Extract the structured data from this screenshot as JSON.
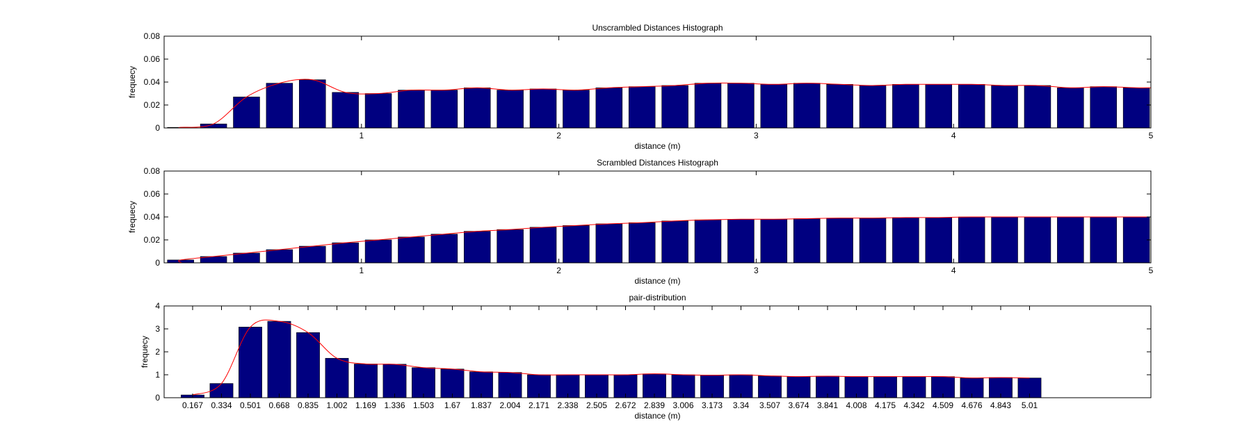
{
  "chart_data": [
    {
      "type": "bar",
      "title": "Unscrambled Distances Histograph",
      "xlabel": "distance (m)",
      "ylabel": "frequecy",
      "xlim": [
        0,
        5
      ],
      "ylim": [
        0,
        0.08
      ],
      "xticks": [
        1,
        2,
        3,
        4,
        5
      ],
      "xtick_labels": [
        "1",
        "2",
        "3",
        "4",
        "5"
      ],
      "yticks": [
        0,
        0.02,
        0.04,
        0.06,
        0.08
      ],
      "ytick_labels": [
        "0",
        "0.02",
        "0.04",
        "0.06",
        "0.08"
      ],
      "grid": false,
      "bar_color": "#000080",
      "curve_color": "#ff0000",
      "x": [
        0.167,
        0.334,
        0.501,
        0.668,
        0.835,
        1.002,
        1.169,
        1.336,
        1.503,
        1.67,
        1.837,
        2.004,
        2.171,
        2.338,
        2.505,
        2.672,
        2.839,
        3.006,
        3.173,
        3.34,
        3.507,
        3.674,
        3.841,
        4.008,
        4.175,
        4.342,
        4.509,
        4.676,
        4.843,
        5.01
      ],
      "values": [
        0.0005,
        0.0035,
        0.027,
        0.039,
        0.042,
        0.031,
        0.03,
        0.033,
        0.033,
        0.035,
        0.033,
        0.034,
        0.033,
        0.035,
        0.036,
        0.037,
        0.039,
        0.039,
        0.038,
        0.039,
        0.038,
        0.037,
        0.038,
        0.038,
        0.038,
        0.037,
        0.037,
        0.035,
        0.036,
        0.035
      ]
    },
    {
      "type": "bar",
      "title": "Scrambled Distances Histograph",
      "xlabel": "distance (m)",
      "ylabel": "frequecy",
      "xlim": [
        0,
        5
      ],
      "ylim": [
        0,
        0.08
      ],
      "xticks": [
        1,
        2,
        3,
        4,
        5
      ],
      "xtick_labels": [
        "1",
        "2",
        "3",
        "4",
        "5"
      ],
      "yticks": [
        0,
        0.02,
        0.04,
        0.06,
        0.08
      ],
      "ytick_labels": [
        "0",
        "0.02",
        "0.04",
        "0.06",
        "0.08"
      ],
      "grid": false,
      "bar_color": "#000080",
      "curve_color": "#ff0000",
      "x": [
        0.167,
        0.334,
        0.501,
        0.668,
        0.835,
        1.002,
        1.169,
        1.336,
        1.503,
        1.67,
        1.837,
        2.004,
        2.171,
        2.338,
        2.505,
        2.672,
        2.839,
        3.006,
        3.173,
        3.34,
        3.507,
        3.674,
        3.841,
        4.008,
        4.175,
        4.342,
        4.509,
        4.676,
        4.843,
        5.01
      ],
      "values": [
        0.0025,
        0.0055,
        0.0085,
        0.0115,
        0.0145,
        0.0175,
        0.02,
        0.0225,
        0.025,
        0.0275,
        0.029,
        0.031,
        0.0325,
        0.034,
        0.035,
        0.0365,
        0.0375,
        0.038,
        0.038,
        0.0385,
        0.039,
        0.039,
        0.0395,
        0.0395,
        0.04,
        0.04,
        0.04,
        0.04,
        0.04,
        0.04
      ]
    },
    {
      "type": "bar",
      "title": "pair-distribution",
      "xlabel": "distance (m)",
      "ylabel": "frequecy",
      "ylim": [
        0,
        4
      ],
      "yticks": [
        0,
        1,
        2,
        3,
        4
      ],
      "ytick_labels": [
        "0",
        "1",
        "2",
        "3",
        "4"
      ],
      "grid": false,
      "bar_color": "#000080",
      "curve_color": "#ff0000",
      "categories": [
        "0.167",
        "0.334",
        "0.501",
        "0.668",
        "0.835",
        "1.002",
        "1.169",
        "1.336",
        "1.503",
        "1.67",
        "1.837",
        "2.004",
        "2.171",
        "2.338",
        "2.505",
        "2.672",
        "2.839",
        "3.006",
        "3.173",
        "3.34",
        "3.507",
        "3.674",
        "3.841",
        "4.008",
        "4.175",
        "4.342",
        "4.509",
        "4.676",
        "4.843",
        "5.01"
      ],
      "values": [
        0.12,
        0.62,
        3.08,
        3.33,
        2.84,
        1.72,
        1.47,
        1.46,
        1.31,
        1.25,
        1.13,
        1.1,
        1.0,
        1.0,
        1.0,
        1.0,
        1.04,
        1.0,
        0.98,
        1.0,
        0.95,
        0.92,
        0.94,
        0.92,
        0.92,
        0.92,
        0.92,
        0.86,
        0.88,
        0.86
      ]
    }
  ]
}
